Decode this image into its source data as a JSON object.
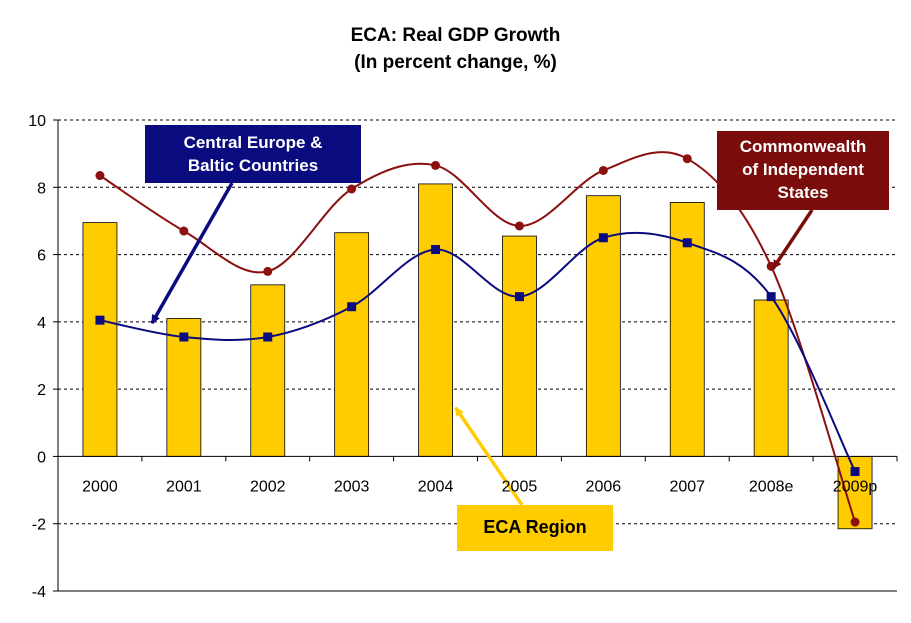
{
  "chart_data": {
    "type": "bar",
    "title": "ECA: Real GDP Growth",
    "subtitle": "(In percent change, %)",
    "categories": [
      "2000",
      "2001",
      "2002",
      "2003",
      "2004",
      "2005",
      "2006",
      "2007",
      "2008e",
      "2009p"
    ],
    "ylim": [
      -4,
      10
    ],
    "yticks": [
      -4,
      -2,
      0,
      2,
      4,
      6,
      8,
      10
    ],
    "grid": "horizontal dashed",
    "series": [
      {
        "name": "ECA  Region",
        "type": "bar",
        "color": "#ffcc00",
        "values": [
          6.95,
          4.1,
          5.1,
          6.65,
          8.1,
          6.55,
          7.75,
          7.55,
          4.65,
          -2.15
        ]
      },
      {
        "name": "Central Europe & Baltic Countries",
        "type": "line",
        "color": "#0b0b80",
        "values": [
          4.05,
          3.55,
          3.55,
          4.45,
          6.15,
          4.75,
          6.5,
          6.35,
          4.75,
          -0.45
        ]
      },
      {
        "name": "Commonwealth of Independent States",
        "type": "line",
        "color": "#8b1010",
        "values": [
          8.35,
          6.7,
          5.5,
          7.95,
          8.65,
          6.85,
          8.5,
          8.85,
          5.65,
          -1.95
        ]
      }
    ],
    "annotations": {
      "cebc": [
        "Central Europe &",
        "Baltic Countries"
      ],
      "cis": [
        "Commonwealth",
        "of Independent",
        "States"
      ],
      "eca": "ECA  Region"
    }
  }
}
